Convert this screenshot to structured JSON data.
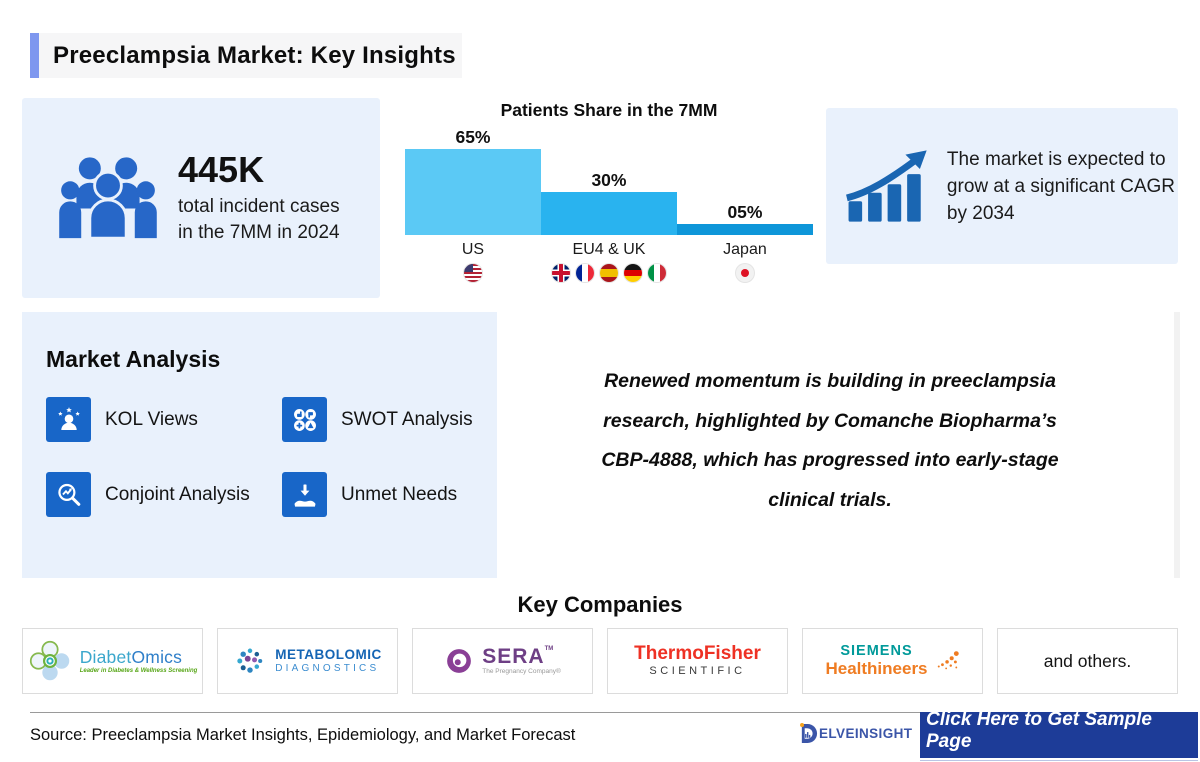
{
  "page_title": "Preeclampsia Market: Key Insights",
  "incident_card": {
    "value": "445K",
    "line1": "total incident cases",
    "line2": "in the 7MM in 2024",
    "icon": "people-group-icon"
  },
  "chart_data": {
    "type": "bar",
    "title": "Patients Share in the 7MM",
    "categories": [
      "US",
      "EU4 & UK",
      "Japan"
    ],
    "values": [
      65,
      30,
      5
    ],
    "value_labels": [
      "65%",
      "30%",
      "05%"
    ],
    "bar_colors": [
      "#5bc9f5",
      "#29b3ef",
      "#0e96d9"
    ],
    "ylim": [
      0,
      70
    ],
    "grid": false,
    "legend": false,
    "flags": {
      "US": [
        "us"
      ],
      "EU4 & UK": [
        "uk",
        "france",
        "spain",
        "germany",
        "italy"
      ],
      "Japan": [
        "japan"
      ]
    }
  },
  "growth_card": {
    "text": "The market is expected to grow at a significant CAGR by 2034",
    "icon": "growth-chart-icon"
  },
  "market_analysis": {
    "heading": "Market Analysis",
    "items": [
      {
        "label": "KOL Views",
        "icon": "kol-views-icon"
      },
      {
        "label": "SWOT Analysis",
        "icon": "swot-analysis-icon"
      },
      {
        "label": "Conjoint Analysis",
        "icon": "conjoint-analysis-icon"
      },
      {
        "label": "Unmet Needs",
        "icon": "unmet-needs-icon"
      }
    ]
  },
  "insight_quote": {
    "lines": [
      "Renewed momentum is building in preeclampsia",
      "research, highlighted by Comanche Biopharma’s",
      "CBP-4888, which has progressed into early-stage",
      "clinical trials."
    ]
  },
  "key_companies": {
    "heading": "Key Companies",
    "items": [
      {
        "name": "DiabetOmics",
        "part1": "Diabet",
        "part2": "Omics",
        "tagline": "Leader in Diabetes & Wellness Screening"
      },
      {
        "name": "Metabolomic Diagnostics",
        "line1": "METABOLOMIC",
        "line2": "DIAGNOSTICS"
      },
      {
        "name": "SERA",
        "wordmark": "SERA",
        "tm": "TM",
        "tagline": "The Pregnancy Company®"
      },
      {
        "name": "Thermo Fisher Scientific",
        "line1": "ThermoFisher",
        "line2": "SCIENTIFIC"
      },
      {
        "name": "Siemens Healthineers",
        "line1": "SIEMENS",
        "line2": "Healthineers"
      },
      {
        "name": "and others.",
        "label": "and others."
      }
    ]
  },
  "footer": {
    "source": "Source: Preeclampsia Market Insights, Epidemiology, and Market Forecast",
    "brand_text": "ELVEINSIGHT",
    "cta": "Click Here to Get Sample Page"
  },
  "colors": {
    "accent_periwinkle": "#7e97ef",
    "card_bg": "#e9f1fc",
    "icon_blue": "#1866c8",
    "bar_us": "#5bc9f5",
    "bar_eu4_uk": "#29b3ef",
    "bar_japan": "#0e96d9",
    "cta_bg": "#1d3c98",
    "delve_blue": "#3b55a8",
    "delve_orange": "#f6a21d",
    "thermo_red": "#ee3124",
    "siemens_teal": "#019a9a",
    "healthineers_orange": "#ef7c22",
    "sera_purple": "#6e3f85"
  }
}
